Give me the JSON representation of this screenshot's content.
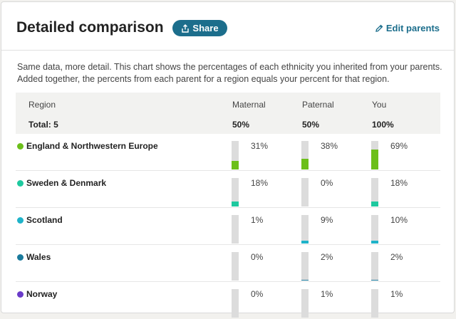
{
  "header": {
    "title": "Detailed comparison",
    "share_label": "Share",
    "edit_label": "Edit parents"
  },
  "description": "Same data, more detail. This chart shows the percentages of each ethnicity you inherited from your parents. Added together, the percents from each parent for a region equals your percent for that region.",
  "table": {
    "columns": {
      "region": "Region",
      "maternal": "Maternal",
      "paternal": "Paternal",
      "you": "You"
    },
    "totals": {
      "label": "Total: 5",
      "maternal": "50%",
      "paternal": "50%",
      "you": "100%"
    },
    "rows": [
      {
        "name": "England & Northwestern Europe",
        "color": "#6cbf1a",
        "maternal": 31,
        "paternal": 38,
        "you": 69,
        "maternal_label": "31%",
        "paternal_label": "38%",
        "you_label": "69%"
      },
      {
        "name": "Sweden & Denmark",
        "color": "#1ec99f",
        "maternal": 18,
        "paternal": 0,
        "you": 18,
        "maternal_label": "18%",
        "paternal_label": "0%",
        "you_label": "18%"
      },
      {
        "name": "Scotland",
        "color": "#1fb3c9",
        "maternal": 1,
        "paternal": 9,
        "you": 10,
        "maternal_label": "1%",
        "paternal_label": "9%",
        "you_label": "10%"
      },
      {
        "name": "Wales",
        "color": "#1a7a9c",
        "maternal": 0,
        "paternal": 2,
        "you": 2,
        "maternal_label": "0%",
        "paternal_label": "2%",
        "you_label": "2%"
      },
      {
        "name": "Norway",
        "color": "#6a3bc9",
        "maternal": 0,
        "paternal": 1,
        "you": 1,
        "maternal_label": "0%",
        "paternal_label": "1%",
        "you_label": "1%"
      }
    ]
  }
}
